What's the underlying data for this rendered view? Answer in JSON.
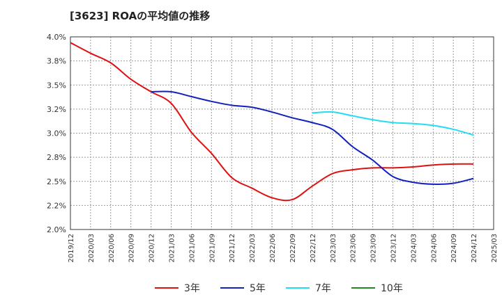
{
  "chart_data": {
    "type": "line",
    "title": "[3623]  ROAの平均値の推移",
    "xlabel": "",
    "ylabel": "",
    "ylim": [
      2.0,
      4.0
    ],
    "y_ticks": [
      "2.0%",
      "2.2%",
      "2.5%",
      "2.8%",
      "3.0%",
      "3.2%",
      "3.5%",
      "3.8%",
      "4.0%"
    ],
    "x_ticks": [
      "2019/12",
      "2020/03",
      "2020/06",
      "2020/09",
      "2020/12",
      "2021/03",
      "2021/06",
      "2021/09",
      "2021/12",
      "2022/03",
      "2022/06",
      "2022/09",
      "2022/12",
      "2023/03",
      "2023/06",
      "2023/09",
      "2023/12",
      "2024/03",
      "2024/06",
      "2024/09",
      "2024/12",
      "2025/03"
    ],
    "grid": true,
    "legend_position": "bottom",
    "series": [
      {
        "name": "3年",
        "color": "#dd1111",
        "x": [
          "2019/12",
          "2020/03",
          "2020/06",
          "2020/09",
          "2020/12",
          "2021/03",
          "2021/06",
          "2021/09",
          "2021/12",
          "2022/03",
          "2022/06",
          "2022/09",
          "2022/12",
          "2023/03",
          "2023/06",
          "2023/09",
          "2023/12",
          "2024/03",
          "2024/06",
          "2024/09",
          "2024/12"
        ],
        "values": [
          3.94,
          3.83,
          3.73,
          3.56,
          3.43,
          3.31,
          3.01,
          2.79,
          2.54,
          2.43,
          2.33,
          2.31,
          2.45,
          2.58,
          2.62,
          2.64,
          2.64,
          2.65,
          2.67,
          2.68,
          2.68
        ]
      },
      {
        "name": "5年",
        "color": "#1122bb",
        "x": [
          "2020/12",
          "2021/03",
          "2021/06",
          "2021/09",
          "2021/12",
          "2022/03",
          "2022/06",
          "2022/09",
          "2022/12",
          "2023/03",
          "2023/06",
          "2023/09",
          "2023/12",
          "2024/03",
          "2024/06",
          "2024/09",
          "2024/12"
        ],
        "values": [
          3.43,
          3.43,
          3.38,
          3.33,
          3.29,
          3.27,
          3.22,
          3.16,
          3.11,
          3.04,
          2.86,
          2.72,
          2.55,
          2.49,
          2.47,
          2.48,
          2.53
        ]
      },
      {
        "name": "7年",
        "color": "#22ddee",
        "x": [
          "2022/12",
          "2023/03",
          "2023/06",
          "2023/09",
          "2023/12",
          "2024/03",
          "2024/06",
          "2024/09",
          "2024/12"
        ],
        "values": [
          3.21,
          3.22,
          3.18,
          3.14,
          3.11,
          3.1,
          3.08,
          3.04,
          2.98
        ]
      },
      {
        "name": "10年",
        "color": "#228822",
        "x": [],
        "values": []
      }
    ]
  }
}
